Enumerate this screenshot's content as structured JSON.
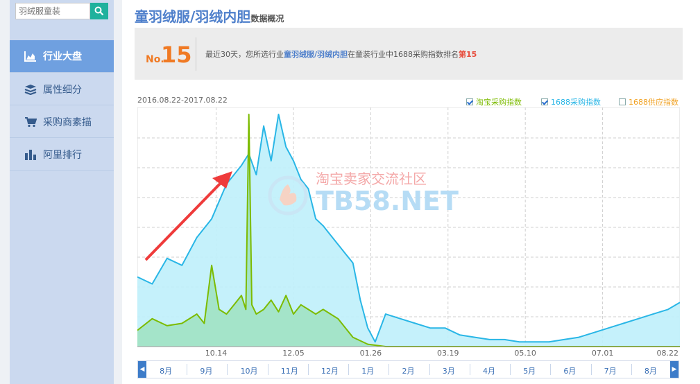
{
  "search": {
    "placeholder": "羽绒服童装"
  },
  "sidebar": {
    "items": [
      {
        "label": "行业大盘",
        "active": true,
        "icon": "area-chart-icon"
      },
      {
        "label": "属性细分",
        "active": false,
        "icon": "layers-icon"
      },
      {
        "label": "采购商素描",
        "active": false,
        "icon": "cart-icon"
      },
      {
        "label": "阿里排行",
        "active": false,
        "icon": "bar-chart-icon"
      }
    ]
  },
  "header": {
    "title": "童羽绒服/羽绒内胆",
    "subtitle": "数据概况"
  },
  "rank": {
    "no_label": "No.",
    "number": "15",
    "text_prefix": "最近30天，您所选行业",
    "text_category": "童羽绒服/羽绒内胆",
    "text_middle": "在童装行业中1688采购指数排名",
    "text_rank": "第15"
  },
  "chart_data": {
    "type": "line",
    "date_range": "2016.08.22-2017.08.22",
    "x_tick_labels": [
      "10.14",
      "12.05",
      "01.26",
      "03.19",
      "05.10",
      "07.01",
      "08.22"
    ],
    "legend": [
      {
        "name": "淘宝采购指数",
        "checked": true,
        "color": "#7cbb00"
      },
      {
        "name": "1688采购指数",
        "checked": true,
        "color": "#29b6e6"
      },
      {
        "name": "1688供应指数",
        "checked": false,
        "color": "#f0a020"
      }
    ],
    "grid": true,
    "series": [
      {
        "name": "1688采购指数",
        "color": "#29b6e6",
        "fill": "#bff0fb",
        "x": [
          "2016-08-22",
          "2016-09-01",
          "2016-09-11",
          "2016-09-21",
          "2016-10-01",
          "2016-10-11",
          "2016-10-21",
          "2016-10-31",
          "2016-11-05",
          "2016-11-10",
          "2016-11-15",
          "2016-11-20",
          "2016-11-25",
          "2016-11-30",
          "2016-12-05",
          "2016-12-10",
          "2016-12-15",
          "2016-12-20",
          "2016-12-25",
          "2016-12-30",
          "2017-01-04",
          "2017-01-09",
          "2017-01-14",
          "2017-01-19",
          "2017-01-24",
          "2017-01-29",
          "2017-02-05",
          "2017-02-15",
          "2017-02-25",
          "2017-03-07",
          "2017-03-17",
          "2017-03-27",
          "2017-04-06",
          "2017-04-16",
          "2017-04-26",
          "2017-05-06",
          "2017-05-16",
          "2017-05-26",
          "2017-06-05",
          "2017-06-15",
          "2017-06-25",
          "2017-07-05",
          "2017-07-15",
          "2017-07-25",
          "2017-08-04",
          "2017-08-14",
          "2017-08-22"
        ],
        "values": [
          30,
          27,
          38,
          35,
          47,
          55,
          70,
          78,
          83,
          74,
          95,
          80,
          100,
          86,
          80,
          72,
          68,
          55,
          52,
          48,
          44,
          40,
          36,
          20,
          8,
          2,
          14,
          12,
          10,
          8,
          8,
          5,
          4,
          3,
          3,
          2,
          2,
          2,
          3,
          4,
          6,
          8,
          10,
          12,
          14,
          16,
          19
        ]
      },
      {
        "name": "淘宝采购指数",
        "color": "#7cbb00",
        "fill": "#9ee2c0",
        "x": [
          "2016-08-22",
          "2016-09-01",
          "2016-09-11",
          "2016-09-21",
          "2016-10-01",
          "2016-10-06",
          "2016-10-11",
          "2016-10-16",
          "2016-10-21",
          "2016-10-26",
          "2016-10-31",
          "2016-11-03",
          "2016-11-05",
          "2016-11-07",
          "2016-11-10",
          "2016-11-15",
          "2016-11-20",
          "2016-11-25",
          "2016-11-30",
          "2016-12-05",
          "2016-12-10",
          "2016-12-15",
          "2016-12-20",
          "2016-12-25",
          "2016-12-30",
          "2017-01-04",
          "2017-01-14",
          "2017-01-24",
          "2017-02-05",
          "2017-03-01",
          "2017-04-01",
          "2017-05-01",
          "2017-06-01",
          "2017-07-01",
          "2017-08-01",
          "2017-08-22"
        ],
        "values": [
          7,
          12,
          9,
          10,
          14,
          10,
          35,
          16,
          14,
          18,
          22,
          16,
          100,
          18,
          14,
          16,
          20,
          15,
          22,
          14,
          18,
          16,
          14,
          16,
          14,
          12,
          4,
          1,
          0,
          0,
          0,
          0,
          0,
          0,
          0,
          0
        ]
      }
    ]
  },
  "timeline": {
    "prev_icon": "prev-arrow-icon",
    "next_icon": "next-arrow-icon",
    "months": [
      "8月",
      "9月",
      "10月",
      "11月",
      "12月",
      "1月",
      "2月",
      "3月",
      "4月",
      "5月",
      "6月",
      "7月",
      "8月"
    ]
  },
  "watermark": {
    "line1": "淘宝卖家交流社区",
    "line2": "TB58.NET"
  },
  "colors": {
    "accent": "#4e7fcb",
    "rank_orange": "#f07a24",
    "rank_red": "#e74c3c",
    "sidebar_bg": "#cbd9ef",
    "nav_active": "#6fa0e0"
  }
}
